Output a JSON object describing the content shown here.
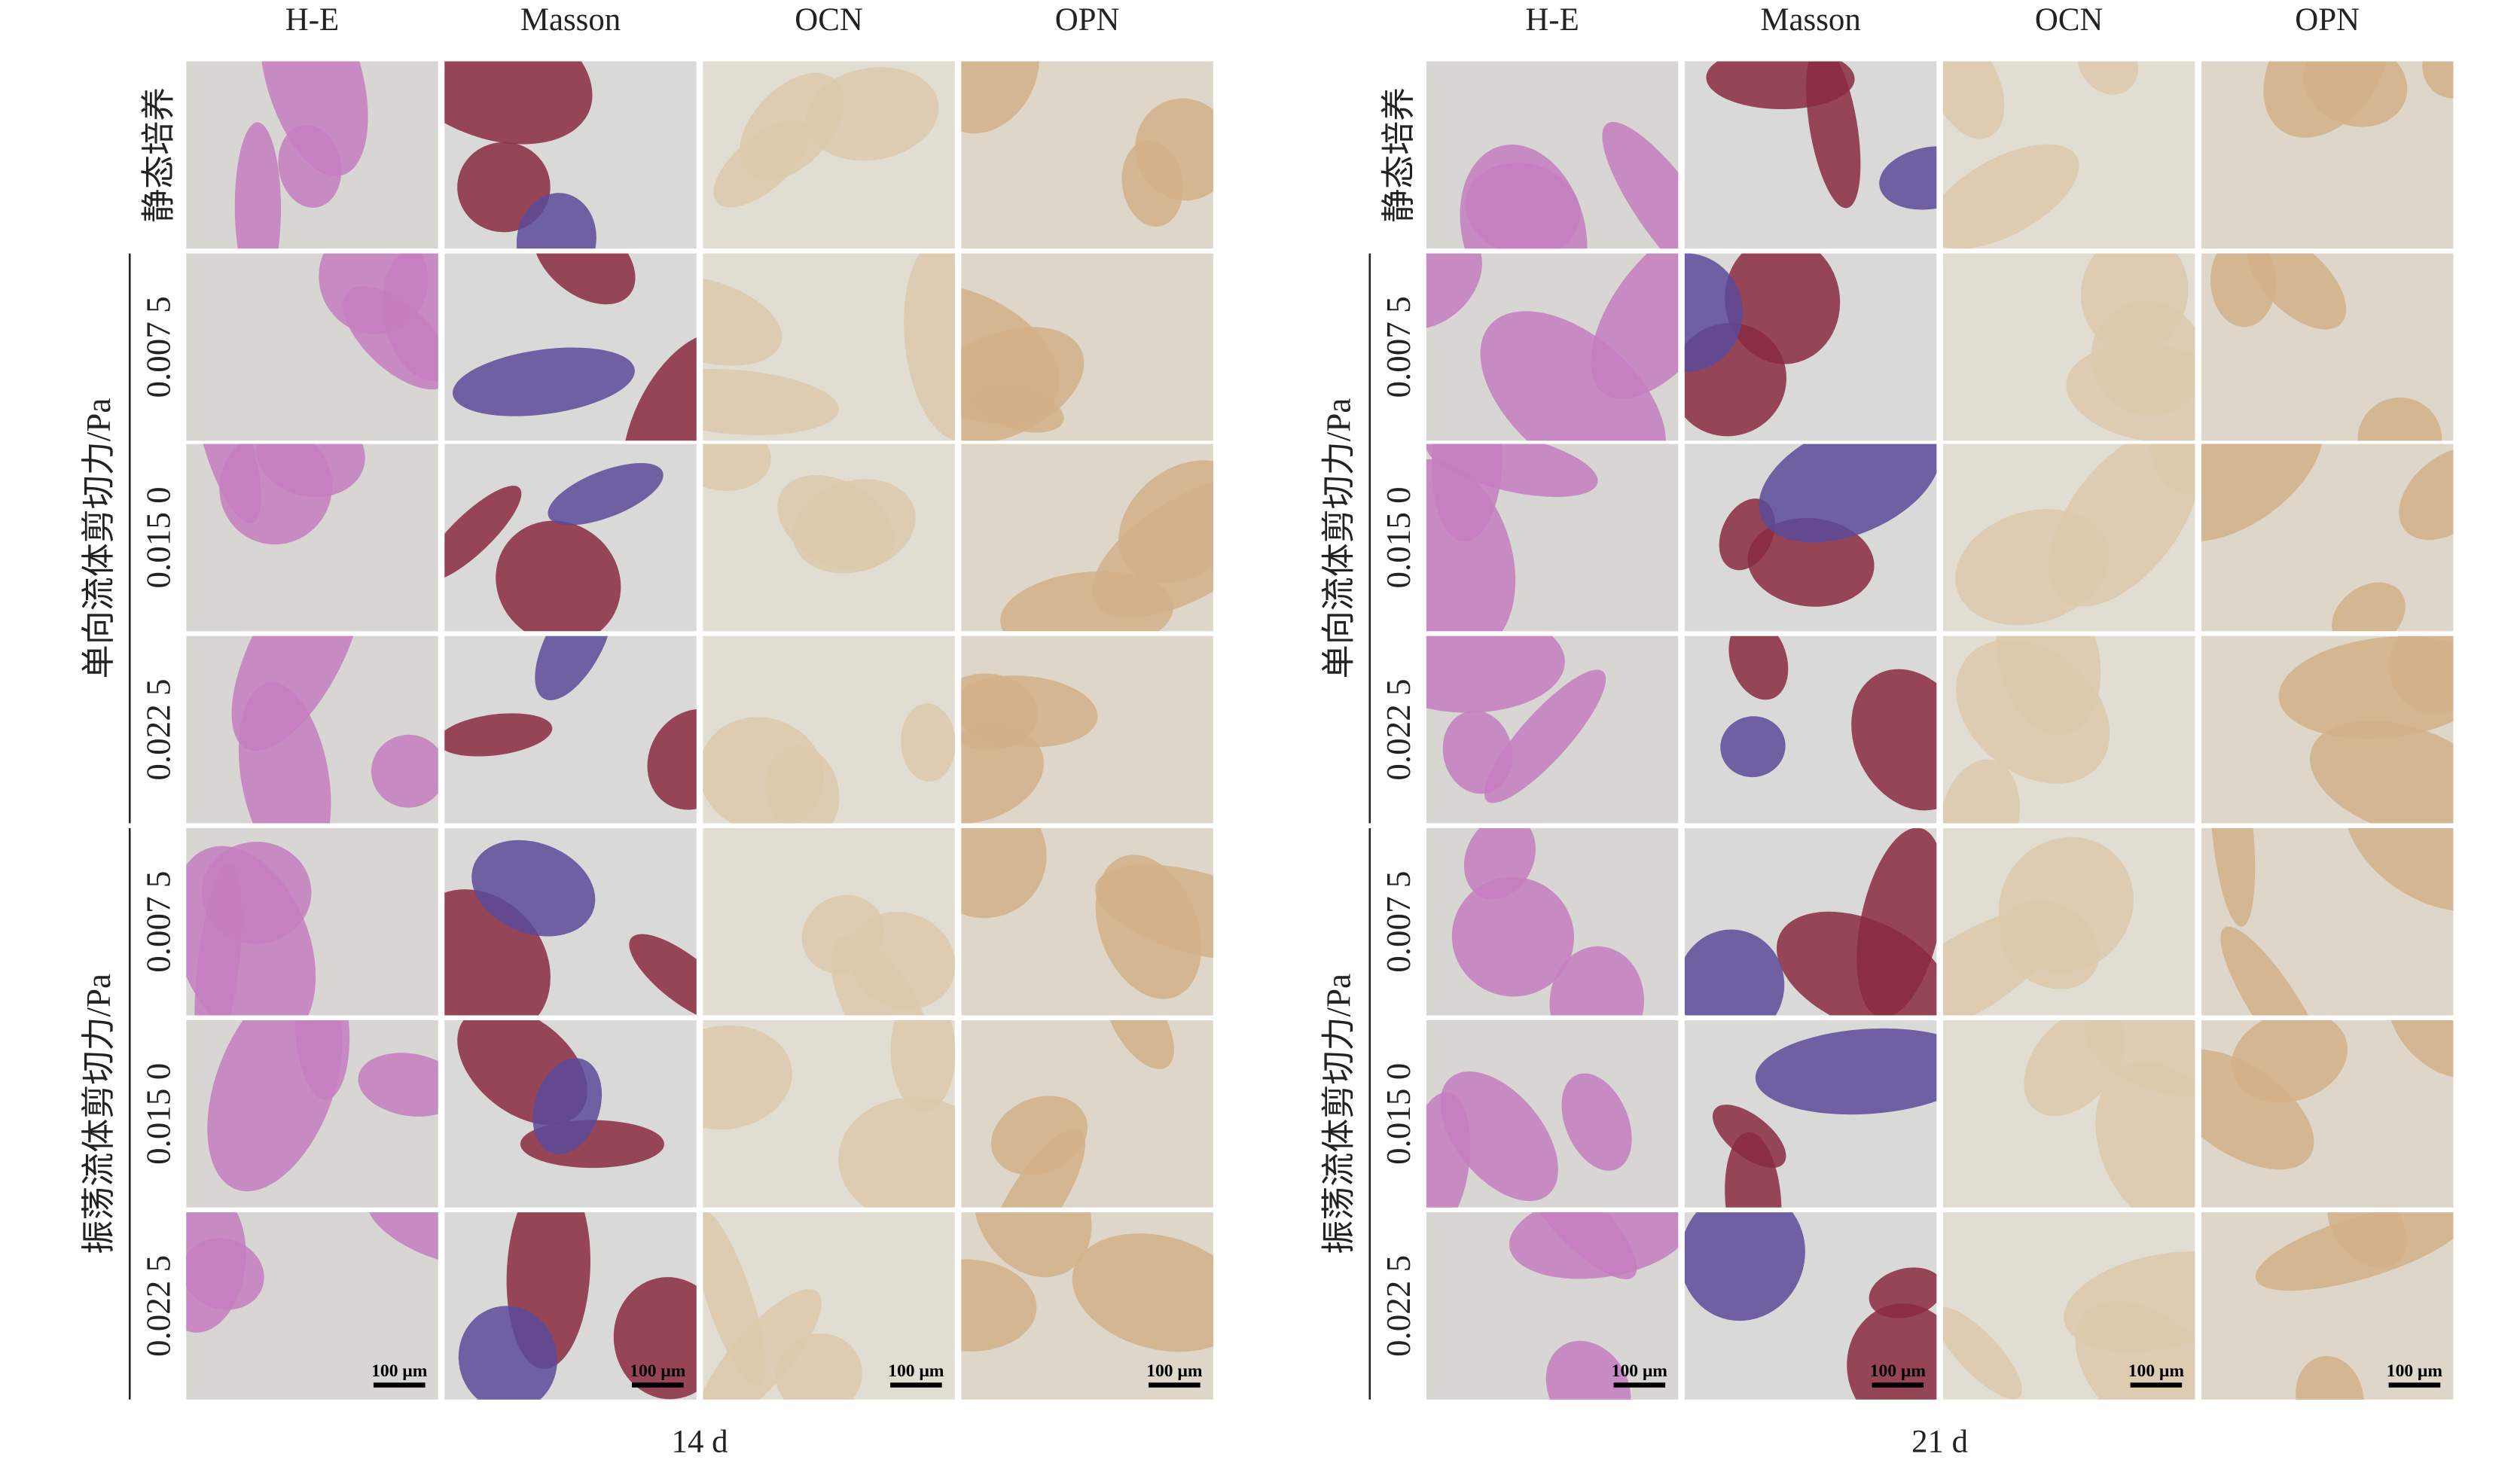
{
  "panels": [
    {
      "caption": "14 d",
      "columns": [
        "H-E",
        "Masson",
        "OCN",
        "OPN"
      ]
    },
    {
      "caption": "21 d",
      "columns": [
        "H-E",
        "Masson",
        "OCN",
        "OPN"
      ]
    }
  ],
  "static_row": "静态培养",
  "groups": [
    {
      "label": "单向流体剪切力/Pa",
      "rows": [
        "0.007 5",
        "0.015 0",
        "0.022 5"
      ]
    },
    {
      "label": "振荡流体剪切力/Pa",
      "rows": [
        "0.007 5",
        "0.015 0",
        "0.022 5"
      ]
    }
  ],
  "scale_bar": "100 μm"
}
